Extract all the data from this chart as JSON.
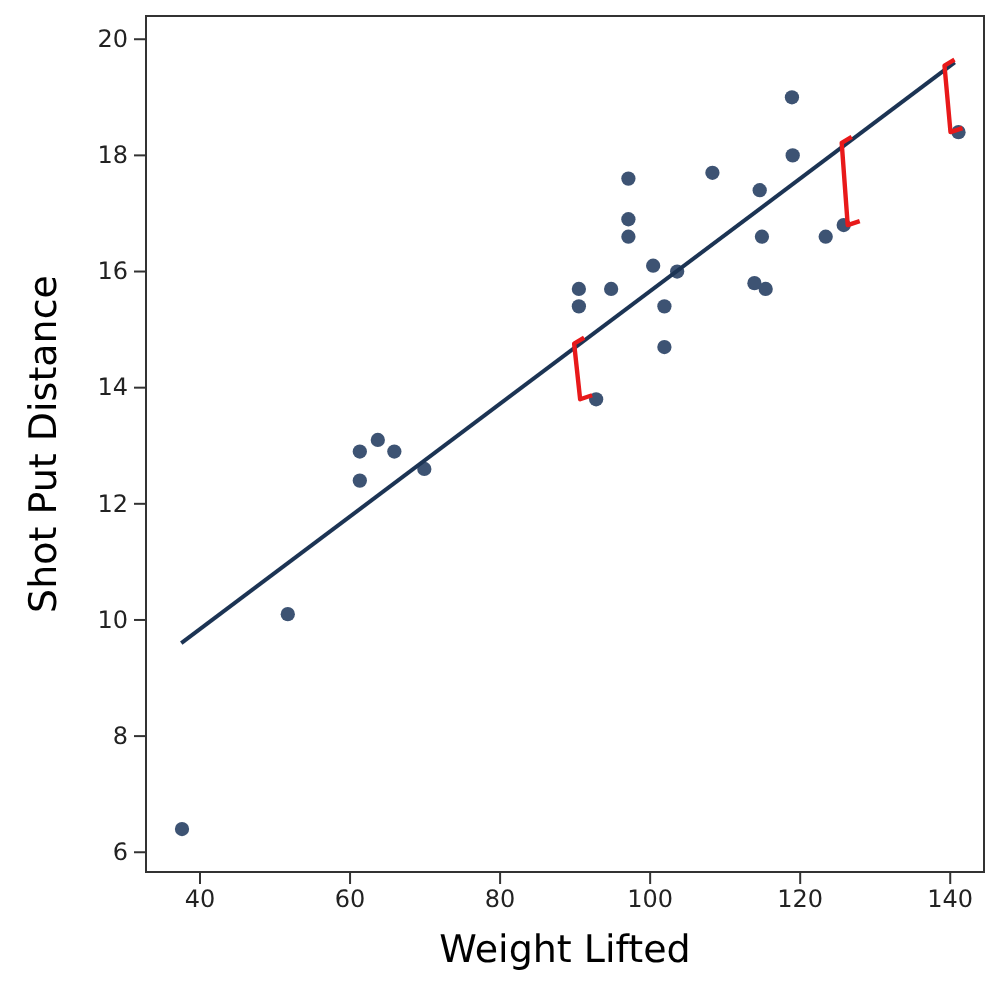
{
  "chart_data": {
    "type": "scatter",
    "xlabel": "Weight Lifted",
    "ylabel": "Shot Put Distance",
    "xlim": [
      32.8,
      144.5
    ],
    "ylim": [
      5.66,
      20.4
    ],
    "xticks": [
      40,
      60,
      80,
      100,
      120,
      140
    ],
    "yticks": [
      6,
      8,
      10,
      12,
      14,
      16,
      18,
      20
    ],
    "grid": false,
    "marker": "circle",
    "series": [
      {
        "color": "#3d5373",
        "x": [
          37.6,
          51.7,
          61.3,
          61.3,
          63.7,
          65.9,
          69.9,
          90.5,
          90.5,
          94.8,
          92.8,
          97.1,
          97.1,
          97.1,
          100.4,
          103.6,
          101.9,
          101.9,
          108.3,
          114.6,
          114.9,
          113.9,
          115.4,
          118.9,
          119,
          123.4,
          125.8,
          141.1
        ],
        "values": [
          6.4,
          10.1,
          12.4,
          12.9,
          13.1,
          12.9,
          12.6,
          15.7,
          15.4,
          15.7,
          13.8,
          17.6,
          16.9,
          16.6,
          16.1,
          16,
          15.4,
          14.7,
          17.7,
          17.4,
          16.6,
          15.8,
          15.7,
          19,
          18,
          16.6,
          16.8,
          18.4
        ]
      },
      {
        "type": "line",
        "color": "#1c3454",
        "line_style": "solid",
        "marker": "none",
        "x": [
          37.5,
          140.6
        ],
        "values": [
          9.6,
          19.6
        ]
      }
    ]
  }
}
